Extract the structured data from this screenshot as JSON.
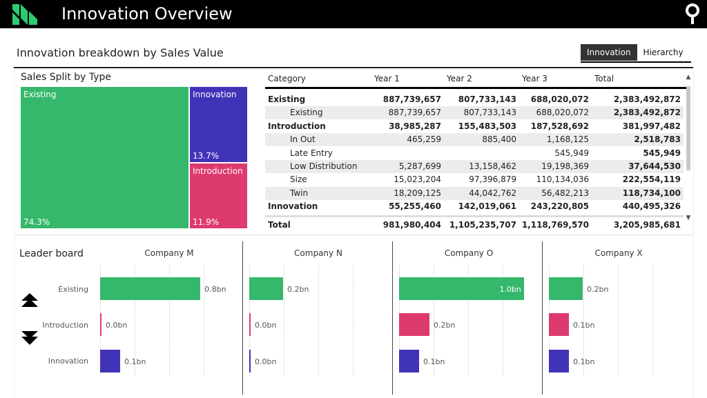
{
  "header": {
    "title": "Innovation Overview",
    "logo_icon": "chevron-logo-icon",
    "pin_icon": "map-pin-icon",
    "colors": {
      "background": "#000000",
      "logo": "#2ecc71"
    }
  },
  "page": {
    "subtitle": "Innovation breakdown by Sales Value",
    "toggle": {
      "innovation_label": "Innovation",
      "hierarchy_label": "Hierarchy",
      "selected": "Innovation"
    }
  },
  "colors": {
    "existing": "#36b86c",
    "innovation": "#4133b8",
    "introduction": "#dd3a6e"
  },
  "treemap": {
    "title": "Sales Split by Type",
    "cells": [
      {
        "label": "Existing",
        "pct": "74.3%",
        "share": 0.743,
        "color": "#36b86c"
      },
      {
        "label": "Innovation",
        "pct": "13.7%",
        "share": 0.137,
        "color": "#4133b8"
      },
      {
        "label": "Introduction",
        "pct": "11.9%",
        "share": 0.119,
        "color": "#dd3a6e"
      }
    ]
  },
  "matrix": {
    "headers": [
      "Category",
      "Year 1",
      "Year 2",
      "Year 3",
      "Total"
    ],
    "rows": [
      {
        "label": "Existing",
        "level": 0,
        "y1": "887,739,657",
        "y2": "807,733,143",
        "y3": "688,020,072",
        "total": "2,383,492,872"
      },
      {
        "label": "Existing",
        "level": 1,
        "y1": "887,739,657",
        "y2": "807,733,143",
        "y3": "688,020,072",
        "total": "2,383,492,872"
      },
      {
        "label": "Introduction",
        "level": 0,
        "y1": "38,985,287",
        "y2": "155,483,503",
        "y3": "187,528,692",
        "total": "381,997,482"
      },
      {
        "label": "In Out",
        "level": 1,
        "y1": "465,259",
        "y2": "885,400",
        "y3": "1,168,125",
        "total": "2,518,783"
      },
      {
        "label": "Late Entry",
        "level": 1,
        "y1": "",
        "y2": "",
        "y3": "545,949",
        "total": "545,949"
      },
      {
        "label": "Low Distribution",
        "level": 1,
        "y1": "5,287,699",
        "y2": "13,158,462",
        "y3": "19,198,369",
        "total": "37,644,530"
      },
      {
        "label": "Size",
        "level": 1,
        "y1": "15,023,204",
        "y2": "97,396,879",
        "y3": "110,134,036",
        "total": "222,554,119"
      },
      {
        "label": "Twin",
        "level": 1,
        "y1": "18,209,125",
        "y2": "44,042,762",
        "y3": "56,482,213",
        "total": "118,734,100"
      },
      {
        "label": "Innovation",
        "level": 0,
        "y1": "55,255,460",
        "y2": "142,019,061",
        "y3": "243,220,805",
        "total": "440,495,326"
      }
    ],
    "total": {
      "label": "Total",
      "y1": "981,980,404",
      "y2": "1,105,235,707",
      "y3": "1,118,769,570",
      "total": "3,205,985,681"
    }
  },
  "leaderboard": {
    "title": "Leader board",
    "up_icon": "sort-ascending-icon",
    "down_icon": "sort-descending-icon",
    "categories": [
      "Existing",
      "Introduction",
      "Innovation"
    ],
    "max_value": 1.0,
    "chart_data": {
      "type": "bar",
      "categories": [
        "Existing",
        "Introduction",
        "Innovation"
      ],
      "series": [
        {
          "name": "Company M",
          "values": [
            0.8,
            0.0,
            0.1
          ],
          "labels": [
            "0.8bn",
            "0.0bn",
            "0.1bn"
          ]
        },
        {
          "name": "Company N",
          "values": [
            0.2,
            0.0,
            0.0
          ],
          "labels": [
            "0.2bn",
            "0.0bn",
            "0.0bn"
          ]
        },
        {
          "name": "Company O",
          "values": [
            1.0,
            0.2,
            0.1
          ],
          "labels": [
            "1.0bn",
            "0.2bn",
            "0.1bn"
          ]
        },
        {
          "name": "Company X",
          "values": [
            0.2,
            0.1,
            0.1
          ],
          "labels": [
            "0.2bn",
            "0.1bn",
            "0.1bn"
          ]
        }
      ]
    }
  }
}
